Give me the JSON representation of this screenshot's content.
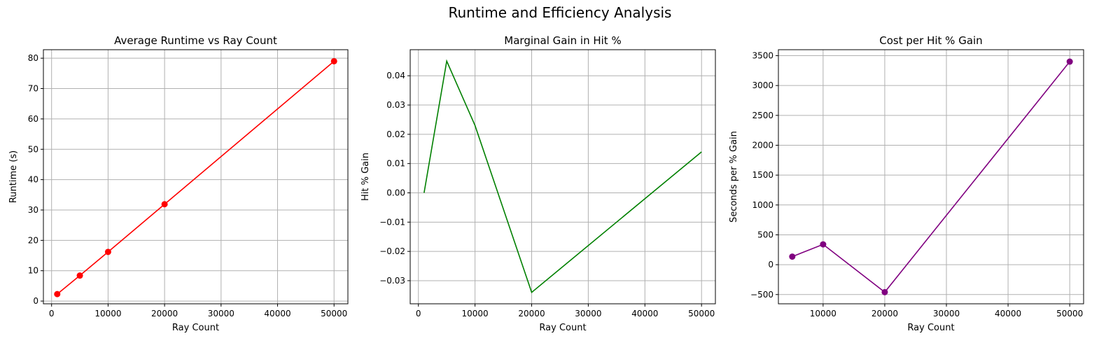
{
  "figure": {
    "title": "Runtime and Efficiency Analysis"
  },
  "chart_data": [
    {
      "type": "line",
      "title": "Average Runtime vs Ray Count",
      "xlabel": "Ray Count",
      "ylabel": "Runtime (s)",
      "x": [
        1000,
        5000,
        10000,
        20000,
        50000
      ],
      "series": [
        {
          "values": [
            2.3,
            8.4,
            16.2,
            31.9,
            79.0
          ],
          "color": "#ff0000",
          "marker": "circle"
        }
      ],
      "xlim": [
        -1450,
        52450
      ],
      "ylim": [
        -0.9,
        82.8
      ],
      "xticks": [
        0,
        10000,
        20000,
        30000,
        40000,
        50000
      ],
      "xtick_labels": [
        "0",
        "10000",
        "20000",
        "30000",
        "40000",
        "50000"
      ],
      "yticks": [
        0,
        10,
        20,
        30,
        40,
        50,
        60,
        70,
        80
      ],
      "ytick_labels": [
        "0",
        "10",
        "20",
        "30",
        "40",
        "50",
        "60",
        "70",
        "80"
      ],
      "grid": true
    },
    {
      "type": "line",
      "title": "Marginal Gain in Hit %",
      "xlabel": "Ray Count",
      "ylabel": "Hit % Gain",
      "x": [
        1000,
        5000,
        10000,
        20000,
        50000
      ],
      "series": [
        {
          "values": [
            0.0,
            0.045,
            0.023,
            -0.034,
            0.014
          ],
          "color": "#008000",
          "marker": "none"
        }
      ],
      "xlim": [
        -1450,
        52450
      ],
      "ylim": [
        -0.0379,
        0.0489
      ],
      "xticks": [
        0,
        10000,
        20000,
        30000,
        40000,
        50000
      ],
      "xtick_labels": [
        "0",
        "10000",
        "20000",
        "30000",
        "40000",
        "50000"
      ],
      "yticks": [
        -0.03,
        -0.02,
        -0.01,
        0.0,
        0.01,
        0.02,
        0.03,
        0.04
      ],
      "ytick_labels": [
        "−0.03",
        "−0.02",
        "−0.01",
        "0.00",
        "0.01",
        "0.02",
        "0.03",
        "0.04"
      ],
      "grid": true
    },
    {
      "type": "line",
      "title": "Cost per Hit % Gain",
      "xlabel": "Ray Count",
      "ylabel": "Seconds per % Gain",
      "x": [
        5000,
        10000,
        20000,
        50000
      ],
      "series": [
        {
          "values": [
            135,
            340,
            -460,
            3400
          ],
          "color": "#800080",
          "marker": "circle"
        }
      ],
      "xlim": [
        2750,
        52250
      ],
      "ylim": [
        -655,
        3600
      ],
      "xticks": [
        10000,
        20000,
        30000,
        40000,
        50000
      ],
      "xtick_labels": [
        "10000",
        "20000",
        "30000",
        "40000",
        "50000"
      ],
      "yticks": [
        -500,
        0,
        500,
        1000,
        1500,
        2000,
        2500,
        3000,
        3500
      ],
      "ytick_labels": [
        "−500",
        "0",
        "500",
        "1000",
        "1500",
        "2000",
        "2500",
        "3000",
        "3500"
      ],
      "grid": true
    }
  ]
}
